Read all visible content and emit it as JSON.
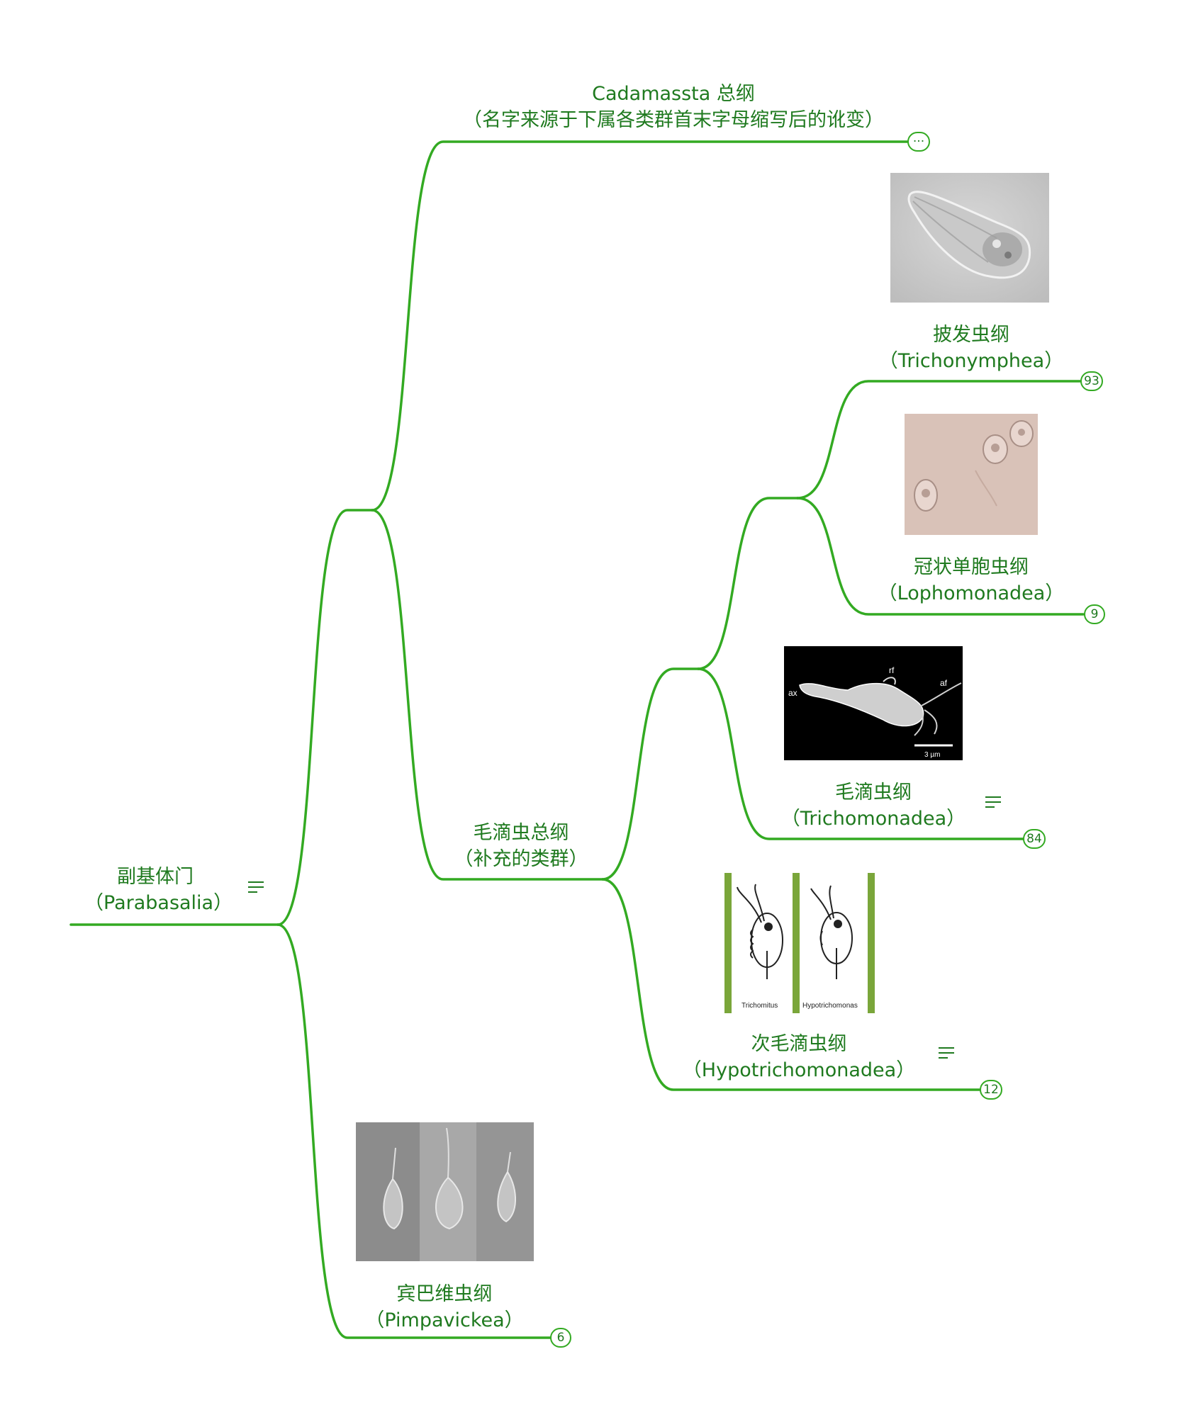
{
  "colors": {
    "line": "#33aa22",
    "text": "#1f7a1f"
  },
  "root": {
    "name": "副基体门",
    "latin": "（Parabasalia）"
  },
  "cadamassta": {
    "name": "Cadamassta 总纲",
    "note": "（名字来源于下属各类群首末字母缩写后的讹变）",
    "collapsed": "···"
  },
  "trichomonadida": {
    "name": "毛滴虫总纲",
    "note": "（补充的类群）"
  },
  "trichonymphea": {
    "name": "披发虫纲",
    "latin": "（Trichonymphea）",
    "count": "93"
  },
  "lophomonadea": {
    "name": "冠状单胞虫纲",
    "latin": "（Lophomonadea）",
    "count": "9"
  },
  "trichomonadea": {
    "name": "毛滴虫纲",
    "latin": "（Trichomonadea）",
    "count": "84",
    "image_labels": {
      "ax": "ax",
      "rf": "rf",
      "af": "af",
      "scale": "3 µm"
    }
  },
  "hypotrichomonadea": {
    "name": "次毛滴虫纲",
    "latin": "（Hypotrichomonadea）",
    "count": "12",
    "image_labels": {
      "left": "Trichomitus",
      "right": "Hypotrichomonas"
    }
  },
  "pimpavickea": {
    "name": "宾巴维虫纲",
    "latin": "（Pimpavickea）",
    "count": "6"
  }
}
